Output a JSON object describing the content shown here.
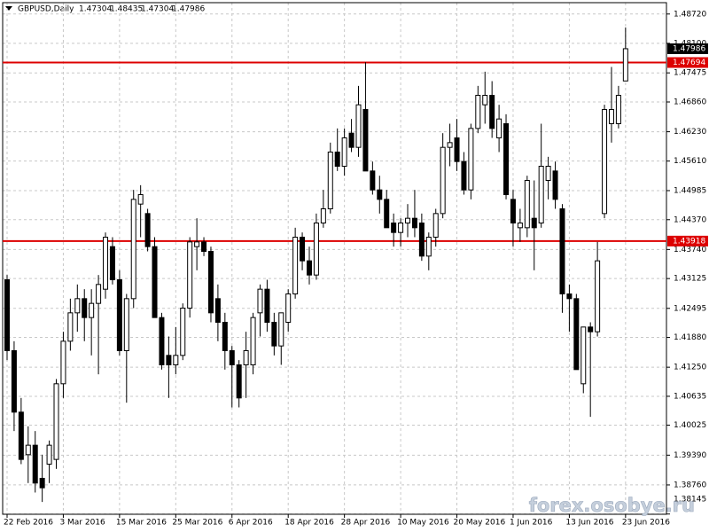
{
  "chart_data": {
    "type": "candlestick",
    "title": "GBPUSD,Daily",
    "watermark": "forex.osobye.ru",
    "categories": [
      "22 Feb 2016",
      null,
      null,
      null,
      null,
      null,
      null,
      null,
      "3 Mar 2016",
      null,
      null,
      null,
      null,
      null,
      null,
      null,
      "15 Mar 2016",
      null,
      null,
      null,
      null,
      null,
      null,
      null,
      "25 Mar 2016",
      null,
      null,
      null,
      null,
      null,
      null,
      null,
      "6 Apr 2016",
      null,
      null,
      null,
      null,
      null,
      null,
      null,
      "18 Apr 2016",
      null,
      null,
      null,
      null,
      null,
      null,
      null,
      "28 Apr 2016",
      null,
      null,
      null,
      null,
      null,
      null,
      null,
      "10 May 2016",
      null,
      null,
      null,
      null,
      null,
      null,
      null,
      "20 May 2016",
      null,
      null,
      null,
      null,
      null,
      null,
      null,
      "1 Jun 2016",
      null,
      null,
      null,
      null,
      null,
      null,
      null,
      "13 Jun 2016",
      null,
      null,
      null,
      null,
      null,
      null,
      null,
      "23 Jun 2016"
    ],
    "open": [
      1.431,
      1.416,
      1.403,
      1.394,
      1.396,
      1.389,
      1.392,
      1.393,
      1.409,
      1.418,
      1.424,
      1.427,
      1.423,
      1.426,
      1.429,
      1.438,
      1.431,
      1.416,
      1.427,
      1.447,
      1.445,
      1.438,
      1.423,
      1.415,
      1.413,
      1.415,
      1.425,
      1.438,
      1.439,
      1.437,
      1.427,
      1.422,
      1.416,
      1.413,
      1.413,
      1.413,
      1.424,
      1.429,
      1.422,
      1.417,
      1.422,
      1.428,
      1.44,
      1.435,
      1.432,
      1.443,
      1.446,
      1.458,
      1.455,
      1.462,
      1.459,
      1.467,
      1.454,
      1.45,
      1.448,
      1.443,
      1.441,
      1.443,
      1.444,
      1.443,
      1.436,
      1.44,
      1.445,
      1.459,
      1.461,
      1.456,
      1.45,
      1.463,
      1.468,
      1.47,
      1.461,
      1.464,
      1.448,
      1.442,
      1.442,
      1.444,
      1.443,
      1.452,
      1.454,
      1.446,
      1.428,
      1.427,
      1.409,
      1.421,
      1.42,
      1.445,
      1.464,
      1.464,
      1.47304
    ],
    "high": [
      1.432,
      1.418,
      1.406,
      1.4,
      1.399,
      1.394,
      1.397,
      1.41,
      1.42,
      1.427,
      1.43,
      1.429,
      1.429,
      1.432,
      1.441,
      1.44,
      1.433,
      1.428,
      1.45,
      1.451,
      1.446,
      1.44,
      1.424,
      1.419,
      1.421,
      1.426,
      1.44,
      1.444,
      1.44,
      1.438,
      1.43,
      1.424,
      1.417,
      1.414,
      1.42,
      1.424,
      1.43,
      1.431,
      1.424,
      1.423,
      1.429,
      1.442,
      1.441,
      1.438,
      1.445,
      1.45,
      1.46,
      1.463,
      1.463,
      1.465,
      1.472,
      1.477,
      1.456,
      1.453,
      1.45,
      1.445,
      1.444,
      1.447,
      1.45,
      1.445,
      1.441,
      1.446,
      1.462,
      1.464,
      1.465,
      1.458,
      1.464,
      1.472,
      1.475,
      1.473,
      1.468,
      1.466,
      1.45,
      1.446,
      1.453,
      1.452,
      1.464,
      1.457,
      1.456,
      1.447,
      1.43,
      1.428,
      1.421,
      1.422,
      1.439,
      1.468,
      1.476,
      1.472,
      1.48435
    ],
    "low": [
      1.414,
      1.399,
      1.392,
      1.388,
      1.386,
      1.384,
      1.388,
      1.391,
      1.406,
      1.416,
      1.42,
      1.418,
      1.415,
      1.411,
      1.427,
      1.43,
      1.415,
      1.405,
      1.425,
      1.44,
      1.437,
      1.423,
      1.412,
      1.406,
      1.411,
      1.414,
      1.423,
      1.433,
      1.436,
      1.422,
      1.418,
      1.412,
      1.404,
      1.404,
      1.406,
      1.411,
      1.419,
      1.42,
      1.415,
      1.413,
      1.42,
      1.427,
      1.433,
      1.43,
      1.431,
      1.442,
      1.445,
      1.454,
      1.453,
      1.458,
      1.457,
      1.454,
      1.449,
      1.445,
      1.442,
      1.438,
      1.438,
      1.44,
      1.44,
      1.435,
      1.433,
      1.438,
      1.444,
      1.455,
      1.454,
      1.449,
      1.448,
      1.462,
      1.464,
      1.461,
      1.458,
      1.448,
      1.438,
      1.439,
      1.44,
      1.433,
      1.442,
      1.448,
      1.446,
      1.424,
      1.42,
      1.412,
      1.407,
      1.402,
      1.419,
      1.444,
      1.46,
      1.463,
      1.47304
    ],
    "close": [
      1.416,
      1.403,
      1.393,
      1.396,
      1.388,
      1.387,
      1.396,
      1.409,
      1.418,
      1.424,
      1.427,
      1.423,
      1.426,
      1.43,
      1.44,
      1.431,
      1.416,
      1.427,
      1.448,
      1.449,
      1.438,
      1.423,
      1.413,
      1.413,
      1.415,
      1.425,
      1.439,
      1.439,
      1.437,
      1.424,
      1.422,
      1.416,
      1.413,
      1.406,
      1.416,
      1.423,
      1.429,
      1.422,
      1.417,
      1.424,
      1.428,
      1.44,
      1.435,
      1.432,
      1.443,
      1.446,
      1.458,
      1.455,
      1.461,
      1.459,
      1.468,
      1.454,
      1.45,
      1.448,
      1.442,
      1.441,
      1.443,
      1.444,
      1.442,
      1.436,
      1.44,
      1.445,
      1.459,
      1.46,
      1.456,
      1.45,
      1.463,
      1.47,
      1.47,
      1.463,
      1.465,
      1.449,
      1.443,
      1.443,
      1.452,
      1.442,
      1.455,
      1.455,
      1.448,
      1.428,
      1.427,
      1.412,
      1.421,
      1.42,
      1.435,
      1.467,
      1.467,
      1.47,
      1.47986
    ],
    "up_color": "#ffffff",
    "down_color": "#000000",
    "hlines": [
      1.47694,
      1.43918
    ],
    "hline_color": "#dd0000",
    "ylim": [
      1.3814,
      1.4896
    ],
    "yticks": [
      {
        "value": 1.4872,
        "label": "1.48720"
      },
      {
        "value": 1.481,
        "label": "1.48100"
      },
      1.47475,
      {
        "value": 1.4686,
        "label": "1.46860"
      },
      {
        "value": 1.4623,
        "label": "1.46230"
      },
      {
        "value": 1.4561,
        "label": "1.45610"
      },
      1.44985,
      {
        "value": 1.4437,
        "label": "1.44370"
      },
      {
        "value": 1.4374,
        "label": "1.43740"
      },
      1.43125,
      1.42495,
      {
        "value": 1.4188,
        "label": "1.41880"
      },
      {
        "value": 1.4125,
        "label": "1.41250"
      },
      1.40635,
      1.40025,
      {
        "value": 1.3939,
        "label": "1.39390"
      },
      {
        "value": 1.3876,
        "label": "1.38760"
      },
      1.38145
    ],
    "grid": true
  }
}
